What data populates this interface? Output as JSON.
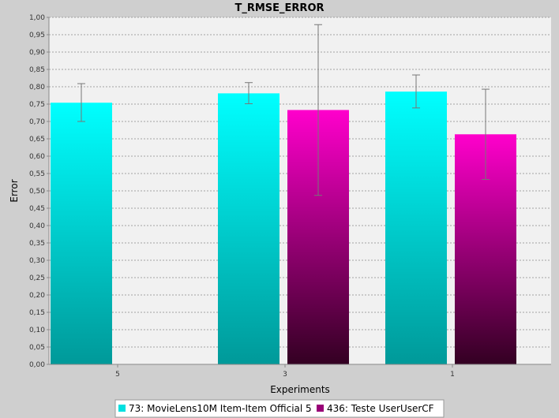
{
  "chart_data": {
    "type": "bar",
    "title": "T_RMSE_ERROR",
    "xlabel": "Experiments",
    "ylabel": "Error",
    "ylim": [
      0,
      1.0
    ],
    "ytick_step": 0.05,
    "ytick_labels": [
      "0,00",
      "0,05",
      "0,10",
      "0,15",
      "0,20",
      "0,25",
      "0,30",
      "0,35",
      "0,40",
      "0,45",
      "0,50",
      "0,55",
      "0,60",
      "0,65",
      "0,70",
      "0,75",
      "0,80",
      "0,85",
      "0,90",
      "0,95",
      "1,00"
    ],
    "categories": [
      "5",
      "3",
      "1"
    ],
    "grid": true,
    "legend_position": "bottom",
    "series": [
      {
        "name": "73: MovieLens10M Item-Item Official 5",
        "color_top": "#00ffff",
        "color_bottom": "#009999",
        "values": [
          0.754,
          0.781,
          0.786
        ],
        "err_low": [
          0.7,
          0.751,
          0.739
        ],
        "err_high": [
          0.809,
          0.812,
          0.834
        ]
      },
      {
        "name": "436: Teste UserUserCF",
        "color_top": "#ff00cc",
        "color_bottom": "#330022",
        "values": [
          null,
          0.733,
          0.663
        ],
        "err_low": [
          null,
          0.487,
          0.533
        ],
        "err_high": [
          null,
          0.979,
          0.793
        ]
      }
    ]
  }
}
